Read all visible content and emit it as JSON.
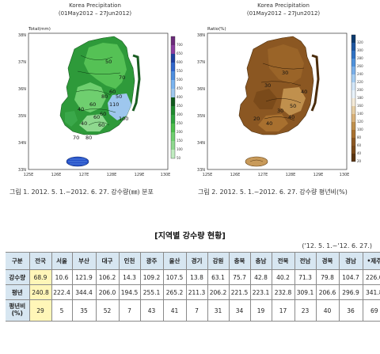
{
  "map1": {
    "title": "Korea Precipitation",
    "period": "(01May2012 – 27Jun2012)",
    "unit": "Total(mm)",
    "lat_ticks": [
      "38N",
      "37N",
      "36N",
      "35N",
      "34N",
      "33N"
    ],
    "lon_ticks": [
      "125E",
      "126E",
      "127E",
      "128E",
      "129E",
      "130E"
    ],
    "colorbar_labels": [
      "700",
      "650",
      "600",
      "550",
      "500",
      "450",
      "400",
      "350",
      "300",
      "250",
      "200",
      "150",
      "100",
      "50"
    ],
    "contours": [
      "50",
      "70",
      "60",
      "80",
      "40",
      "60",
      "50",
      "110",
      "100",
      "40",
      "60",
      "70",
      "80",
      "60",
      "60"
    ],
    "colors": {
      "high": "#1e8a2e",
      "mid": "#4cbf4c",
      "low": "#8fd98f",
      "rain": "#9ec7ee",
      "island": "#2550c8"
    }
  },
  "map2": {
    "title": "Korea Precipitation",
    "period": "(01May2012 – 27Jun2012)",
    "unit": "Ratio(%)",
    "lat_ticks": [
      "38N",
      "37N",
      "36N",
      "35N",
      "34N",
      "33N"
    ],
    "lon_ticks": [
      "125E",
      "126E",
      "127E",
      "128E",
      "129E",
      "130E"
    ],
    "colorbar_labels": [
      "320",
      "300",
      "280",
      "260",
      "240",
      "220",
      "200",
      "180",
      "160",
      "140",
      "120",
      "100",
      "80",
      "60",
      "40",
      "20"
    ],
    "contours": [
      "30",
      "30",
      "40",
      "50",
      "30",
      "40",
      "20",
      "40"
    ],
    "colors": {
      "dark": "#7a4a1a",
      "mid": "#a8702f",
      "light": "#d9b27a"
    }
  },
  "captions": {
    "fig1": "그림 1. 2012. 5. 1.~2012. 6. 27. 강수량(㎜) 분포",
    "fig2": "그림 2. 2012. 5. 1.~2012. 6. 27. 강수량 평년비(%)"
  },
  "section_title": "[지역별 강수량 현황]",
  "period_note": "('12. 5. 1.~'12. 6. 27.)",
  "table": {
    "header": [
      "구분",
      "전국",
      "서울",
      "부산",
      "대구",
      "인천",
      "광주",
      "울산",
      "경기",
      "강원",
      "충북",
      "충남",
      "전북",
      "전남",
      "경북",
      "경남",
      "•제주"
    ],
    "rows": [
      {
        "label": "강수량",
        "values": [
          "68.9",
          "10.6",
          "121.9",
          "106.2",
          "14.3",
          "109.2",
          "107.5",
          "13.8",
          "63.1",
          "75.7",
          "42.8",
          "40.2",
          "71.3",
          "79.8",
          "104.7",
          "226.0"
        ]
      },
      {
        "label": "평년",
        "values": [
          "240.8",
          "222.4",
          "344.4",
          "206.0",
          "194.5",
          "255.1",
          "265.2",
          "211.3",
          "206.2",
          "221.5",
          "223.1",
          "232.8",
          "309.1",
          "206.6",
          "296.9",
          "341.8"
        ]
      },
      {
        "label": "평년비\n(%)",
        "values": [
          "29",
          "5",
          "35",
          "52",
          "7",
          "43",
          "41",
          "7",
          "31",
          "34",
          "19",
          "17",
          "23",
          "40",
          "36",
          "69"
        ]
      }
    ]
  }
}
